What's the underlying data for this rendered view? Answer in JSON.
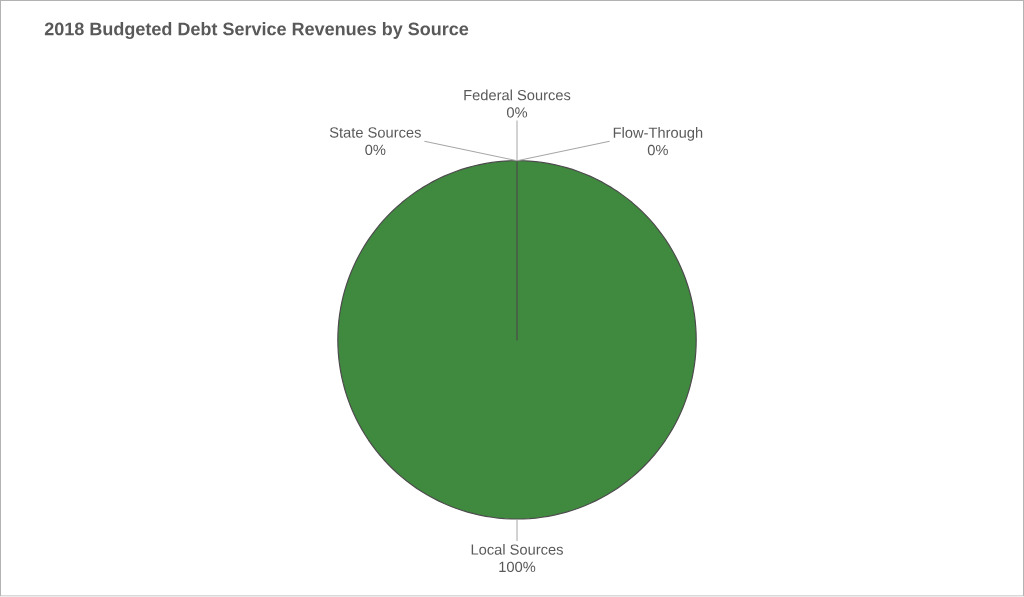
{
  "chart_data": {
    "type": "pie",
    "title": "2018 Budgeted Debt Service Revenues by Source",
    "categories": [
      "Local Sources",
      "State Sources",
      "Federal Sources",
      "Flow-Through"
    ],
    "values": [
      100,
      0,
      0,
      0
    ],
    "value_labels": [
      "100%",
      "0%",
      "0%",
      "0%"
    ],
    "colors": [
      "#3f8a3f",
      "#a5a5a5",
      "#ffc000",
      "#5b9bd5"
    ]
  }
}
